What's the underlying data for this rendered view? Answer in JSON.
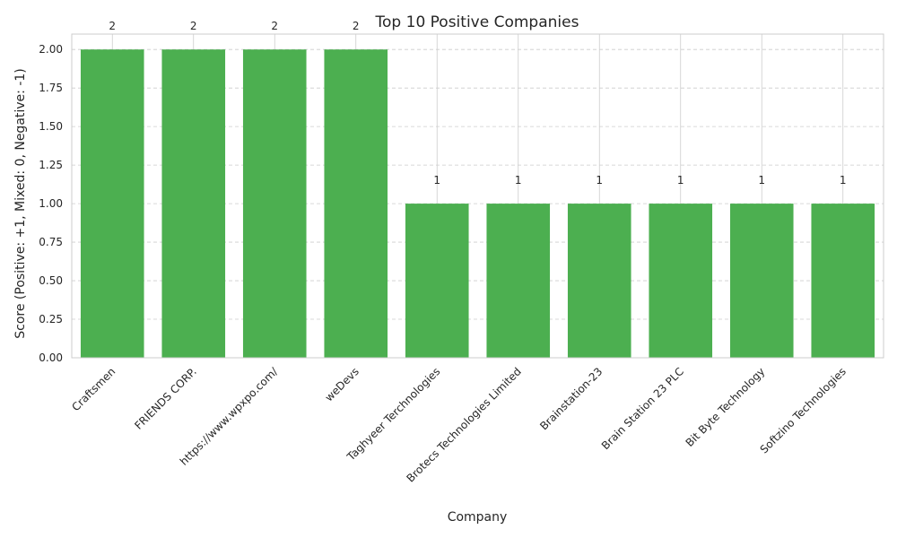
{
  "chart_data": {
    "type": "bar",
    "title": "Top 10 Positive Companies",
    "xlabel": "Company",
    "ylabel": "Score (Positive: +1, Mixed: 0, Negative: -1)",
    "categories": [
      "Craftsmen",
      "FRIENDS CORP.",
      "https://www.wpxpo.com/",
      "weDevs",
      "Taghyeer Terchnologies",
      "Brotecs Technologies Limited",
      "Brainstation-23",
      "Brain Station 23 PLC",
      "Bit Byte Technology",
      "Softzino Technologies"
    ],
    "values": [
      2,
      2,
      2,
      2,
      1,
      1,
      1,
      1,
      1,
      1
    ],
    "data_labels": [
      "2",
      "2",
      "2",
      "2",
      "1",
      "1",
      "1",
      "1",
      "1",
      "1"
    ],
    "ylim": [
      0,
      2.1
    ],
    "yticks": [
      "0.00",
      "0.25",
      "0.50",
      "0.75",
      "1.00",
      "1.25",
      "1.50",
      "1.75",
      "2.00"
    ],
    "grid": true,
    "bar_color": "#4caf50",
    "grid_color": "#cccccc"
  }
}
